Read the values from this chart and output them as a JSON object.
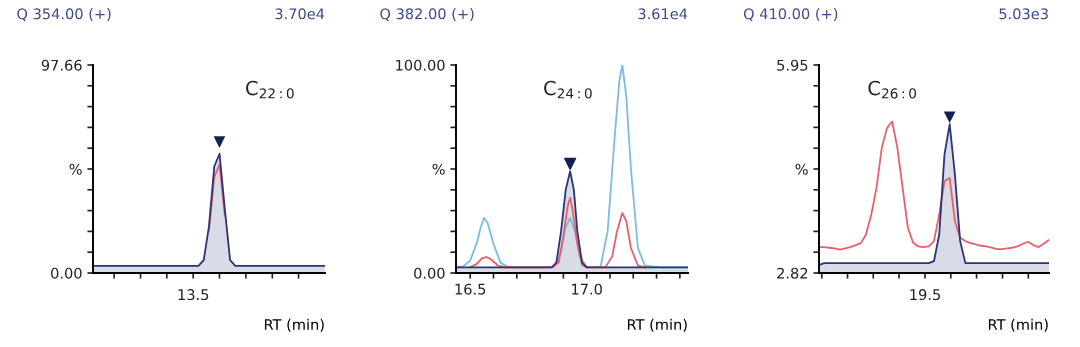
{
  "chart_data": [
    {
      "type": "line",
      "title": "Q 354.00 (+)",
      "subtitle": "3.70e4",
      "xlabel": "RT (min)",
      "annotations": [
        "C$_{22:0}$",
        "13.5",
        "▼"
      ],
      "legend": false,
      "grid": false,
      "categories": [
        null,
        null,
        null,
        null,
        null,
        null,
        null,
        null,
        null,
        null,
        null,
        null,
        null,
        null,
        null,
        null,
        null,
        null,
        null,
        null,
        null,
        null,
        null,
        null,
        null,
        null,
        null,
        null,
        null,
        null,
        null,
        null,
        null,
        null,
        null,
        null,
        null,
        null,
        null,
        null,
        null,
        null,
        null,
        null,
        null
      ],
      "ylim": [
        0,
        97.66
      ],
      "yticks": [
        {
          "value": 0,
          "label": "0.00"
        },
        {
          "value": 9.766,
          "label": null
        },
        {
          "value": 19.532,
          "label": null
        },
        {
          "value": 29.298,
          "label": null
        },
        {
          "value": 39.064,
          "label": null
        },
        {
          "value": 48.83,
          "label": "%"
        },
        {
          "value": 58.596,
          "label": null
        },
        {
          "value": 68.362,
          "label": null
        },
        {
          "value": 78.128,
          "label": null
        },
        {
          "value": 87.894,
          "label": null
        },
        {
          "value": 97.66,
          "label": "97.66"
        }
      ],
      "series": [
        {
          "type": "line",
          "color": "#e8606a",
          "values": [
            null,
            null,
            null,
            null,
            null,
            null,
            null,
            null,
            null,
            null,
            null,
            null,
            null,
            null,
            null,
            null,
            null,
            null,
            null,
            null,
            null,
            null,
            20,
            45,
            51,
            27,
            null,
            null,
            null,
            null,
            null,
            null,
            null,
            null,
            null,
            null,
            null,
            null,
            null,
            null,
            null,
            null,
            null,
            null,
            null
          ]
        },
        {
          "type": "area",
          "color": "#2b3577",
          "values": [
            3.3,
            3.3,
            3.3,
            3.3,
            3.3,
            3.3,
            3.3,
            3.3,
            3.3,
            3.3,
            3.3,
            3.3,
            3.3,
            3.3,
            3.3,
            3.3,
            3.3,
            3.3,
            3.3,
            3.3,
            3.3,
            6,
            22,
            50,
            56,
            30,
            6,
            3.3,
            3.3,
            3.3,
            3.3,
            3.3,
            3.3,
            3.3,
            3.3,
            3.3,
            3.3,
            3.3,
            3.3,
            3.3,
            3.3,
            3.3,
            3.3,
            3.3,
            3.3
          ]
        }
      ]
    },
    {
      "type": "line",
      "title": "Q 382.00 (+)",
      "subtitle": "3.61e4",
      "xlabel": "RT (min)",
      "annotations": [
        "C$_{24:0}$"
      ],
      "legend": false,
      "grid": false,
      "xlim": [
        16.439,
        17.435
      ],
      "xticks": [
        16.5,
        {
          "value": 16.6,
          "label": null
        },
        {
          "value": 16.7,
          "label": null
        },
        {
          "value": 16.8,
          "label": null
        },
        {
          "value": 16.9,
          "label": null
        },
        {
          "value": 17.0,
          "label": "17.0"
        },
        {
          "value": 17.1,
          "label": null
        },
        {
          "value": 17.2,
          "label": null
        },
        {
          "value": 17.3,
          "label": null
        },
        {
          "value": 17.4,
          "label": null
        }
      ],
      "ylim": [
        0,
        100
      ],
      "yticks": [
        {
          "value": 0,
          "label": "0.00"
        },
        {
          "value": 10,
          "label": null
        },
        {
          "value": 20,
          "label": null
        },
        {
          "value": 30,
          "label": null
        },
        {
          "value": 40,
          "label": null
        },
        {
          "value": 50,
          "label": "%"
        },
        {
          "value": 60,
          "label": null
        },
        {
          "value": 70,
          "label": null
        },
        {
          "value": 80,
          "label": null
        },
        {
          "value": 90,
          "label": null
        },
        {
          "value": 100,
          "label": "100.00"
        }
      ],
      "series": [
        {
          "type": "line",
          "color": "#7cbbe8",
          "x": [
            16.44,
            16.47,
            16.5,
            16.53,
            16.545,
            16.56,
            16.575,
            16.6,
            16.63,
            16.66,
            16.7,
            16.8,
            16.86,
            16.89,
            16.91,
            16.929,
            16.95,
            16.97,
            17.0,
            17.03,
            17.06,
            17.09,
            17.12,
            17.14,
            17.153,
            17.17,
            17.19,
            17.22,
            17.25,
            17.32,
            17.435
          ],
          "values": [
            2.7,
            3.2,
            6,
            15,
            22,
            26.5,
            24,
            14,
            5,
            3,
            2.7,
            2.7,
            3,
            10,
            22,
            26.5,
            20,
            8,
            3,
            2.7,
            3.2,
            20,
            65,
            92,
            100,
            85,
            50,
            12,
            3.5,
            2.7,
            2.7
          ]
        },
        {
          "type": "line",
          "color": "#e8606a",
          "x": [
            16.5,
            16.53,
            16.55,
            16.57,
            16.59,
            16.62,
            16.65,
            16.85,
            16.88,
            16.9,
            16.92,
            16.929,
            16.94,
            16.96,
            16.98,
            17.0,
            17.08,
            17.11,
            17.13,
            17.153,
            17.17,
            17.19,
            17.22,
            17.25
          ],
          "values": [
            2.7,
            4.5,
            7,
            7.7,
            6.5,
            3.5,
            2.7,
            2.7,
            5,
            18,
            33,
            36.1,
            30,
            14,
            4,
            2.7,
            2.7,
            8,
            20,
            28.9,
            25,
            12,
            3.5,
            2.7
          ]
        },
        {
          "type": "area",
          "color": "#2b3577",
          "x": [
            16.439,
            16.85,
            16.87,
            16.89,
            16.91,
            16.929,
            16.945,
            16.96,
            16.98,
            17.0,
            17.435
          ],
          "values": [
            2.7,
            2.7,
            5,
            20,
            40,
            48.9,
            40,
            20,
            5,
            2.7,
            2.7
          ]
        },
        {
          "type": "scatter",
          "marker": "triangle",
          "color": "#14214f",
          "x": [
            16.929
          ],
          "values": [
            52.5
          ]
        }
      ]
    },
    {
      "type": "line",
      "title": "Q 410.00 (+)",
      "subtitle": "5.03e3",
      "xlabel": "RT (min)",
      "annotations": [
        "C$_{26:0}$",
        "19.5",
        "▼"
      ],
      "legend": false,
      "grid": false,
      "categories": [
        null,
        null,
        null,
        null,
        null,
        null,
        null,
        null,
        null,
        null,
        null,
        null,
        null,
        null,
        null,
        null,
        null,
        null,
        null,
        null,
        null,
        null,
        null,
        null,
        null,
        null,
        null,
        null,
        null,
        null,
        null,
        null,
        null,
        null,
        null,
        null,
        null,
        null,
        null,
        null,
        null,
        null,
        null,
        null,
        null
      ],
      "ylim": [
        2.82,
        5.95
      ],
      "yticks": [
        {
          "value": 2.82,
          "label": "2.82"
        },
        {
          "value": 3.133,
          "label": null
        },
        {
          "value": 3.446,
          "label": null
        },
        {
          "value": 3.759,
          "label": null
        },
        {
          "value": 4.072,
          "label": null
        },
        {
          "value": 4.385,
          "label": "%"
        },
        {
          "value": 4.698,
          "label": null
        },
        {
          "value": 5.011,
          "label": null
        },
        {
          "value": 5.324,
          "label": null
        },
        {
          "value": 5.637,
          "label": null
        },
        {
          "value": 5.95,
          "label": "5.95"
        }
      ],
      "series": [
        {
          "type": "line",
          "color": "#e8606a",
          "values": [
            3.21,
            3.21,
            3.2,
            3.19,
            3.17,
            3.19,
            3.21,
            3.24,
            3.27,
            3.4,
            3.7,
            4.1,
            4.7,
            5.0,
            5.1,
            4.7,
            4.1,
            3.5,
            3.28,
            3.22,
            3.21,
            3.22,
            3.3,
            3.7,
            4.2,
            4.25,
            3.6,
            3.35,
            3.3,
            3.27,
            3.25,
            3.23,
            3.22,
            3.2,
            3.18,
            3.18,
            3.19,
            3.2,
            3.22,
            3.26,
            3.29,
            3.24,
            3.21,
            3.26,
            3.32
          ]
        },
        {
          "type": "area",
          "color": "#2b3577",
          "values": [
            2.94,
            2.97,
            2.97,
            2.97,
            2.97,
            2.97,
            2.97,
            2.97,
            2.97,
            2.97,
            2.97,
            2.97,
            2.97,
            2.97,
            2.97,
            2.97,
            2.97,
            2.97,
            2.97,
            2.97,
            2.97,
            2.97,
            3.0,
            3.4,
            4.6,
            5.06,
            4.3,
            3.3,
            2.97,
            2.97,
            2.97,
            2.97,
            2.97,
            2.97,
            2.97,
            2.97,
            2.97,
            2.97,
            2.97,
            2.97,
            2.97,
            2.97,
            2.97,
            2.97,
            2.97
          ]
        }
      ]
    }
  ]
}
